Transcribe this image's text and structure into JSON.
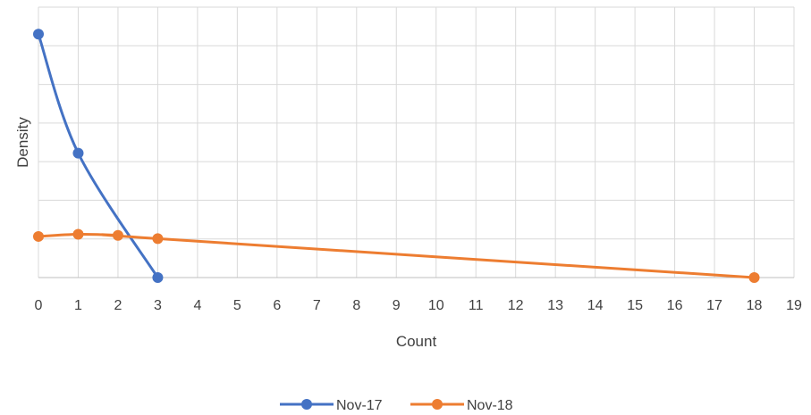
{
  "chart_data": {
    "type": "line",
    "title": "",
    "xlabel": "Count",
    "ylabel": "Density",
    "xlim": [
      0,
      19
    ],
    "ylim": [
      0,
      0.5
    ],
    "x_ticks": [
      0,
      1,
      2,
      3,
      4,
      5,
      6,
      7,
      8,
      9,
      10,
      11,
      12,
      13,
      14,
      15,
      16,
      17,
      18,
      19
    ],
    "y_tick_labels_shown": false,
    "grid": true,
    "smooth": true,
    "legend_position": "bottom",
    "series": [
      {
        "name": "Nov-17",
        "color": "#4472C4",
        "x": [
          0,
          1,
          3
        ],
        "y": [
          0.45,
          0.23,
          0.0
        ]
      },
      {
        "name": "Nov-18",
        "color": "#ED7D31",
        "x": [
          0,
          1,
          2,
          3,
          18
        ],
        "y": [
          0.076,
          0.08,
          0.078,
          0.072,
          0.0
        ]
      }
    ]
  }
}
